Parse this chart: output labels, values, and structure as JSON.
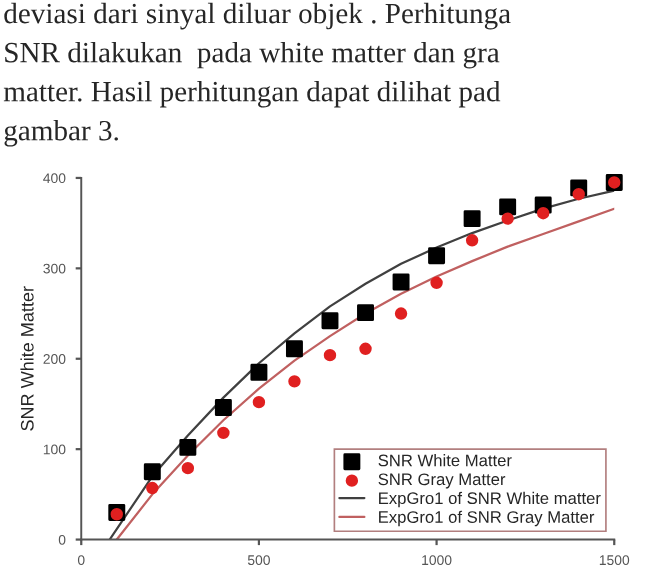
{
  "chart_data": {
    "type": "scatter",
    "ylabel": "SNR White Matter",
    "annotations": [
      "deviasi dari sinyal diluar objek . Perhitunga",
      "SNR dilakukan  pada white matter dan gra",
      "matter. Hasil perhitungan dapat dilihat pad",
      "gambar 3."
    ],
    "series": [
      {
        "name": "SNR White Matter",
        "marker": "square",
        "color": "#000000",
        "x": [
          100,
          200,
          300,
          400,
          500,
          600,
          700,
          800,
          900,
          1000,
          1100,
          1200,
          1300,
          1400,
          1500
        ],
        "values": [
          30,
          75,
          102,
          146,
          185,
          211,
          242,
          251,
          285,
          314,
          355,
          368,
          370,
          389,
          395
        ]
      },
      {
        "name": "SNR Gray Matter",
        "marker": "circle",
        "color": "#e02020",
        "x": [
          100,
          200,
          300,
          400,
          500,
          600,
          700,
          800,
          900,
          1000,
          1100,
          1200,
          1300,
          1400,
          1500
        ],
        "values": [
          28,
          57,
          79,
          118,
          152,
          175,
          204,
          211,
          250,
          284,
          331,
          355,
          361,
          382,
          395
        ]
      },
      {
        "name": "ExpGro1 of SNR White matter",
        "type": "line",
        "color": "#404040",
        "x": [
          80,
          200,
          300,
          400,
          500,
          600,
          700,
          800,
          900,
          1000,
          1100,
          1200,
          1300,
          1400,
          1500
        ],
        "values": [
          0,
          70,
          115,
          157,
          195,
          228,
          258,
          283,
          305,
          323,
          339,
          353,
          366,
          377,
          386
        ]
      },
      {
        "name": "ExpGro1 of SNR Gray Matter",
        "type": "line",
        "color": "#c06060",
        "x": [
          100,
          200,
          300,
          400,
          500,
          600,
          700,
          800,
          900,
          1000,
          1100,
          1200,
          1300,
          1400,
          1500
        ],
        "values": [
          0,
          50,
          93,
          132,
          167,
          198,
          225,
          250,
          272,
          291,
          308,
          324,
          338,
          352,
          366
        ]
      }
    ],
    "xlim": [
      0,
      1500
    ],
    "xticks": [
      0,
      500,
      1000,
      1500
    ],
    "ylim": [
      0,
      400
    ],
    "yticks": [
      0,
      100,
      200,
      300,
      400
    ],
    "grid": false,
    "legend": "bottom right"
  }
}
